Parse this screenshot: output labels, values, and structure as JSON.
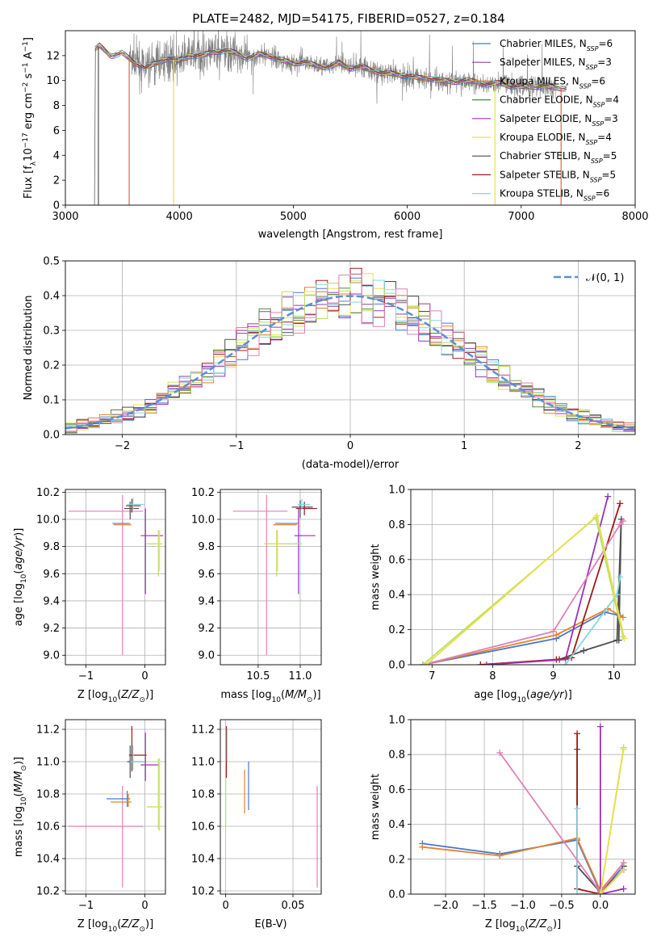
{
  "title": "PLATE=2482, MJD=54175, FIBERID=0527, z=0.184",
  "colors": [
    "#4878d0",
    "#8b3fae",
    "#e3832c",
    "#4a8a3c",
    "#9b30b8",
    "#e8e04a",
    "#4d4d4d",
    "#a01818",
    "#7fd8e0",
    "#b8e05a",
    "#e080b8"
  ],
  "chart_data": [
    {
      "type": "line",
      "panel": "spectrum",
      "xlabel": "wavelength [Angstrom, rest frame]",
      "ylabel": "Flux [f_λ10^-17 erg cm^-2 s^-1 A^-1]",
      "xlim": [
        3000,
        8000
      ],
      "ylim": [
        0,
        14
      ],
      "xticks": [
        "3000",
        "4000",
        "5000",
        "6000",
        "7000",
        "8000"
      ],
      "yticks": [
        "0",
        "2",
        "4",
        "6",
        "8",
        "10",
        "12"
      ],
      "grid": false,
      "legend": "right",
      "series": [
        {
          "name": "Chabrier MILES, N_SSP=6",
          "color": "#4878d0"
        },
        {
          "name": "Salpeter MILES, N_SSP=3",
          "color": "#8b3fae"
        },
        {
          "name": "Kroupa MILES, N_SSP=6",
          "color": "#e3832c"
        },
        {
          "name": "Chabrier ELODIE, N_SSP=4",
          "color": "#4a8a3c"
        },
        {
          "name": "Salpeter ELODIE, N_SSP=3",
          "color": "#9b30b8"
        },
        {
          "name": "Kroupa ELODIE, N_SSP=4",
          "color": "#e8e04a"
        },
        {
          "name": "Chabrier STELIB, N_SSP=5",
          "color": "#4d4d4d"
        },
        {
          "name": "Salpeter STELIB, N_SSP=5",
          "color": "#a01818"
        },
        {
          "name": "Kroupa STELIB, N_SSP=6",
          "color": "#7fd8e0"
        }
      ],
      "model_x": [
        3200,
        3260,
        3300,
        3400,
        3500,
        3600,
        3700,
        3800,
        3900,
        4000,
        4100,
        4200,
        4300,
        4400,
        4500,
        4600,
        4700,
        4800,
        4900,
        5000,
        5100,
        5200,
        5300,
        5400,
        5500,
        5600,
        5700,
        5800,
        5900,
        6000,
        6100,
        6200,
        6300,
        6400,
        6500,
        6600,
        6700,
        6800,
        6900,
        7000,
        7100,
        7200,
        7300,
        7400
      ],
      "model_y": [
        0,
        12.5,
        12.8,
        12.0,
        12.2,
        11.5,
        11.0,
        11.4,
        11.8,
        11.6,
        12.0,
        12.0,
        12.3,
        12.4,
        12.2,
        11.8,
        12.1,
        12.0,
        11.6,
        11.4,
        11.5,
        11.2,
        11.1,
        11.4,
        11.0,
        11.1,
        10.8,
        10.6,
        10.5,
        10.4,
        10.2,
        10.2,
        10.0,
        9.9,
        10.0,
        9.9,
        9.7,
        9.8,
        9.6,
        9.5,
        9.5,
        9.6,
        9.4,
        9.4
      ],
      "data_start": 3560,
      "data_end": 7300,
      "drops": [
        {
          "x": 3290,
          "color": "#4d4d4d"
        },
        {
          "x": 3560,
          "color": "#e06050"
        },
        {
          "x": 3950,
          "color": "#e8e04a"
        },
        {
          "x": 6770,
          "color": "#e8e04a"
        },
        {
          "x": 7350,
          "color": "#e06050"
        }
      ]
    },
    {
      "type": "line",
      "panel": "residuals",
      "xlabel": "(data-model)/error",
      "ylabel": "Normed distribution",
      "xlim": [
        -2.5,
        2.5
      ],
      "ylim": [
        0,
        0.5
      ],
      "xticks": [
        "−2",
        "−1",
        "0",
        "1",
        "2"
      ],
      "yticks": [
        "0.0",
        "0.1",
        "0.2",
        "0.3",
        "0.4",
        "0.5"
      ],
      "grid": true,
      "legend": "top-right",
      "reference": {
        "name": "𝒩(0, 1)",
        "color": "#5b8ed8"
      },
      "hist_edges_start": -2.5,
      "hist_bin": 0.1,
      "hist_bins": 50,
      "hist_colors": [
        "#4878d0",
        "#8b3fae",
        "#e3832c",
        "#4a8a3c",
        "#9b30b8",
        "#e8e04a",
        "#4d4d4d",
        "#a01818",
        "#7fd8e0",
        "#b8e05a",
        "#e080b8"
      ]
    },
    {
      "type": "scatter",
      "panel": "age-vs-Z",
      "xlabel": "Z [log10(Z/Z☉)]",
      "ylabel": "age  [log10(age/yr)]",
      "xlim": [
        -1.35,
        0.35
      ],
      "ylim": [
        8.93,
        10.22
      ],
      "xticks": [
        -1,
        0
      ],
      "yticks": [
        9.0,
        9.2,
        9.4,
        9.6,
        9.8,
        10.0,
        10.2
      ],
      "grid": true,
      "points": [
        {
          "x": -0.38,
          "y": 10.06,
          "xerr": [
            0.92,
            0.35
          ],
          "yerr": [
            1.06,
            0.12
          ],
          "c": 10
        },
        {
          "x": -0.3,
          "y": 9.97,
          "xerr": [
            0.25,
            0.05
          ],
          "yerr": [
            0.0,
            0.0
          ],
          "c": 0
        },
        {
          "x": -0.28,
          "y": 9.96,
          "xerr": [
            0.25,
            0.05
          ],
          "yerr": [
            0.0,
            0.0
          ],
          "c": 2
        },
        {
          "x": -0.22,
          "y": 10.1,
          "xerr": [
            0.1,
            0.15
          ],
          "yerr": [
            0.05,
            0.05
          ],
          "c": 7
        },
        {
          "x": -0.25,
          "y": 10.08,
          "xerr": [
            0.1,
            0.15
          ],
          "yerr": [
            0.08,
            0.05
          ],
          "c": 6
        },
        {
          "x": -0.2,
          "y": 10.11,
          "xerr": [
            0.1,
            0.2
          ],
          "yerr": [
            0.04,
            0.05
          ],
          "c": 8
        },
        {
          "x": 0.01,
          "y": 9.88,
          "xerr": [
            0.08,
            0.3
          ],
          "yerr": [
            0.43,
            0.2
          ],
          "c": 4
        },
        {
          "x": 0.23,
          "y": 9.82,
          "xerr": [
            0.2,
            0.05
          ],
          "yerr": [
            0.24,
            0.1
          ],
          "c": 9
        },
        {
          "x": 0.25,
          "y": 9.82,
          "xerr": [
            0.05,
            0.05
          ],
          "yerr": [
            0.2,
            0.1
          ],
          "c": 5
        }
      ]
    },
    {
      "type": "scatter",
      "panel": "age-vs-mass",
      "xlabel": "mass [log10(M/M☉)]",
      "ylabel": "",
      "xlim": [
        10.05,
        11.25
      ],
      "ylim": [
        8.93,
        10.22
      ],
      "xticks": [
        10.5,
        11.0
      ],
      "yticks": [
        9.0,
        9.2,
        9.4,
        9.6,
        9.8,
        10.0,
        10.2
      ],
      "grid": true,
      "points": [
        {
          "x": 10.6,
          "y": 10.06,
          "xerr": [
            0.4,
            0.25
          ],
          "yerr": [
            1.06,
            0.12
          ],
          "c": 10
        },
        {
          "x": 10.78,
          "y": 9.97,
          "xerr": [
            0.08,
            0.2
          ],
          "yerr": [
            0.0,
            0.0
          ],
          "c": 0
        },
        {
          "x": 10.76,
          "y": 9.96,
          "xerr": [
            0.08,
            0.2
          ],
          "yerr": [
            0.0,
            0.0
          ],
          "c": 2
        },
        {
          "x": 11.05,
          "y": 10.08,
          "xerr": [
            0.1,
            0.15
          ],
          "yerr": [
            0.05,
            0.05
          ],
          "c": 7
        },
        {
          "x": 11.0,
          "y": 10.09,
          "xerr": [
            0.1,
            0.15
          ],
          "yerr": [
            0.08,
            0.05
          ],
          "c": 6
        },
        {
          "x": 11.02,
          "y": 10.11,
          "xerr": [
            0.05,
            0.1
          ],
          "yerr": [
            0.04,
            0.04
          ],
          "c": 8
        },
        {
          "x": 10.98,
          "y": 9.88,
          "xerr": [
            0.05,
            0.2
          ],
          "yerr": [
            0.43,
            0.2
          ],
          "c": 4
        },
        {
          "x": 10.72,
          "y": 9.82,
          "xerr": [
            0.15,
            0.3
          ],
          "yerr": [
            0.24,
            0.1
          ],
          "c": 9
        },
        {
          "x": 10.73,
          "y": 9.82,
          "xerr": [
            0.05,
            0.05
          ],
          "yerr": [
            0.2,
            0.1
          ],
          "c": 5
        }
      ]
    },
    {
      "type": "line",
      "panel": "mass-weight-vs-age",
      "xlabel": "age  [log10(age/yr)]",
      "ylabel": "mass weight",
      "xlim": [
        6.65,
        10.35
      ],
      "ylim": [
        0,
        1
      ],
      "xticks": [
        7,
        8,
        9,
        10
      ],
      "yticks": [
        0.0,
        0.2,
        0.4,
        0.6,
        0.8,
        1.0
      ],
      "grid": true,
      "series": [
        {
          "c": 0,
          "x": [
            6.85,
            9.05,
            9.85,
            10.1
          ],
          "y": [
            0.0,
            0.15,
            0.3,
            0.28
          ]
        },
        {
          "c": 2,
          "x": [
            6.85,
            9.05,
            9.9,
            10.15
          ],
          "y": [
            0.0,
            0.17,
            0.32,
            0.27
          ]
        },
        {
          "c": 6,
          "x": [
            7.8,
            9.1,
            9.5,
            10.05,
            10.12,
            10.08
          ],
          "y": [
            0.0,
            0.03,
            0.08,
            0.14,
            0.83,
            0.14
          ]
        },
        {
          "c": 7,
          "x": [
            7.8,
            9.05,
            9.3,
            10.1
          ],
          "y": [
            0.0,
            0.03,
            0.04,
            0.92
          ]
        },
        {
          "c": 4,
          "x": [
            7.9,
            9.2,
            9.9
          ],
          "y": [
            0.0,
            0.03,
            0.96
          ]
        },
        {
          "c": 8,
          "x": [
            9.2,
            10.05,
            10.1
          ],
          "y": [
            0.0,
            0.4,
            0.5
          ]
        },
        {
          "c": 10,
          "x": [
            6.85,
            9.0,
            10.1,
            10.15
          ],
          "y": [
            0.0,
            0.19,
            0.8,
            0.82
          ]
        },
        {
          "c": 9,
          "x": [
            6.85,
            9.7,
            10.15
          ],
          "y": [
            0.0,
            0.84,
            0.16
          ]
        },
        {
          "c": 5,
          "x": [
            6.9,
            9.72,
            10.17
          ],
          "y": [
            0.0,
            0.85,
            0.15
          ]
        }
      ]
    },
    {
      "type": "scatter",
      "panel": "mass-vs-Z",
      "xlabel": "Z [log10(Z/Z☉)]",
      "ylabel": "mass [log10(M/M☉)]",
      "xlim": [
        -1.35,
        0.35
      ],
      "ylim": [
        10.18,
        11.26
      ],
      "xticks": [
        -1,
        0
      ],
      "yticks": [
        10.2,
        10.4,
        10.6,
        10.8,
        11.0,
        11.2
      ],
      "grid": true,
      "points": [
        {
          "x": -0.38,
          "y": 10.6,
          "xerr": [
            0.92,
            0.35
          ],
          "yerr": [
            0.38,
            0.25
          ],
          "c": 10
        },
        {
          "x": -0.3,
          "y": 10.77,
          "xerr": [
            0.35,
            0.05
          ],
          "yerr": [
            0.05,
            0.05
          ],
          "c": 0
        },
        {
          "x": -0.28,
          "y": 10.75,
          "xerr": [
            0.3,
            0.05
          ],
          "yerr": [
            0.03,
            0.05
          ],
          "c": 2
        },
        {
          "x": -0.22,
          "y": 11.04,
          "xerr": [
            0.05,
            0.25
          ],
          "yerr": [
            0.1,
            0.18
          ],
          "c": 7
        },
        {
          "x": -0.25,
          "y": 11.0,
          "xerr": [
            0.05,
            0.25
          ],
          "yerr": [
            0.1,
            0.1
          ],
          "c": 6
        },
        {
          "x": -0.2,
          "y": 11.0,
          "xerr": [
            0.05,
            0.2
          ],
          "yerr": [
            0.05,
            0.1
          ],
          "c": 8
        },
        {
          "x": 0.01,
          "y": 10.98,
          "xerr": [
            0.08,
            0.25
          ],
          "yerr": [
            0.1,
            0.2
          ],
          "c": 4
        },
        {
          "x": 0.23,
          "y": 10.72,
          "xerr": [
            0.2,
            0.05
          ],
          "yerr": [
            0.14,
            0.3
          ],
          "c": 9
        },
        {
          "x": 0.25,
          "y": 10.72,
          "xerr": [
            0.05,
            0.05
          ],
          "yerr": [
            0.15,
            0.3
          ],
          "c": 5
        }
      ]
    },
    {
      "type": "scatter",
      "panel": "mass-vs-EBV",
      "xlabel": "E(B-V)",
      "ylabel": "",
      "xlim": [
        -0.004,
        0.071
      ],
      "ylim": [
        10.18,
        11.26
      ],
      "xticks": [
        0.0,
        0.05
      ],
      "yticks": [
        10.2,
        10.4,
        10.6,
        10.8,
        11.0,
        11.2
      ],
      "grid": true,
      "points": [
        {
          "x": 0.0,
          "y": 11.0,
          "xerr": [
            0,
            0
          ],
          "yerr": [
            0.4,
            0.2
          ],
          "c": 9
        },
        {
          "x": 0.0005,
          "y": 11.05,
          "xerr": [
            0,
            0
          ],
          "yerr": [
            0.15,
            0.17
          ],
          "c": 7
        },
        {
          "x": 0.001,
          "y": 11.1,
          "xerr": [
            0,
            0
          ],
          "yerr": [
            0.1,
            0.1
          ],
          "c": 8
        },
        {
          "x": 0.014,
          "y": 10.8,
          "xerr": [
            0,
            0
          ],
          "yerr": [
            0.12,
            0.15
          ],
          "c": 2
        },
        {
          "x": 0.017,
          "y": 10.85,
          "xerr": [
            0,
            0
          ],
          "yerr": [
            0.15,
            0.15
          ],
          "c": 0
        },
        {
          "x": 0.068,
          "y": 10.55,
          "xerr": [
            0,
            0
          ],
          "yerr": [
            0.33,
            0.3
          ],
          "c": 10
        }
      ]
    },
    {
      "type": "line",
      "panel": "mass-weight-vs-Z",
      "xlabel": "Z [log10(Z/Z☉)]",
      "ylabel": "mass weight",
      "xlim": [
        -2.45,
        0.45
      ],
      "ylim": [
        0,
        1
      ],
      "xticks": [
        -2.0,
        -1.5,
        -1.0,
        -0.5,
        0.0
      ],
      "yticks": [
        0.0,
        0.2,
        0.4,
        0.6,
        0.8,
        1.0
      ],
      "grid": true,
      "series": [
        {
          "c": 0,
          "x": [
            -2.3,
            -1.3,
            -0.3,
            0.0,
            0.3
          ],
          "y": [
            0.29,
            0.23,
            0.31,
            0.01,
            0.16
          ]
        },
        {
          "c": 2,
          "x": [
            -2.3,
            -1.3,
            -0.3,
            0.0,
            0.3
          ],
          "y": [
            0.27,
            0.22,
            0.32,
            0.02,
            0.18
          ]
        },
        {
          "c": 6,
          "x": [
            -0.3,
            -0.3,
            0.0,
            0.3,
            0.3
          ],
          "y": [
            0.83,
            0.16,
            0.01,
            0.14,
            0.16
          ]
        },
        {
          "c": 7,
          "x": [
            -0.3,
            -0.3,
            0.0,
            0.3
          ],
          "y": [
            0.92,
            0.03,
            0.0,
            0.14
          ]
        },
        {
          "c": 4,
          "x": [
            0.0,
            0.0,
            0.3
          ],
          "y": [
            0.96,
            0.0,
            0.03
          ]
        },
        {
          "c": 8,
          "x": [
            -0.3,
            -0.3,
            0.0
          ],
          "y": [
            0.49,
            0.0,
            0.0
          ]
        },
        {
          "c": 10,
          "x": [
            -1.3,
            0.0,
            0.3
          ],
          "y": [
            0.81,
            0.01,
            0.18
          ]
        },
        {
          "c": 9,
          "x": [
            0.3,
            0.0,
            0.3
          ],
          "y": [
            0.84,
            0.0,
            0.84
          ]
        },
        {
          "c": 5,
          "x": [
            0.3,
            0.0,
            0.3
          ],
          "y": [
            0.83,
            0.0,
            0.14
          ]
        }
      ]
    }
  ]
}
